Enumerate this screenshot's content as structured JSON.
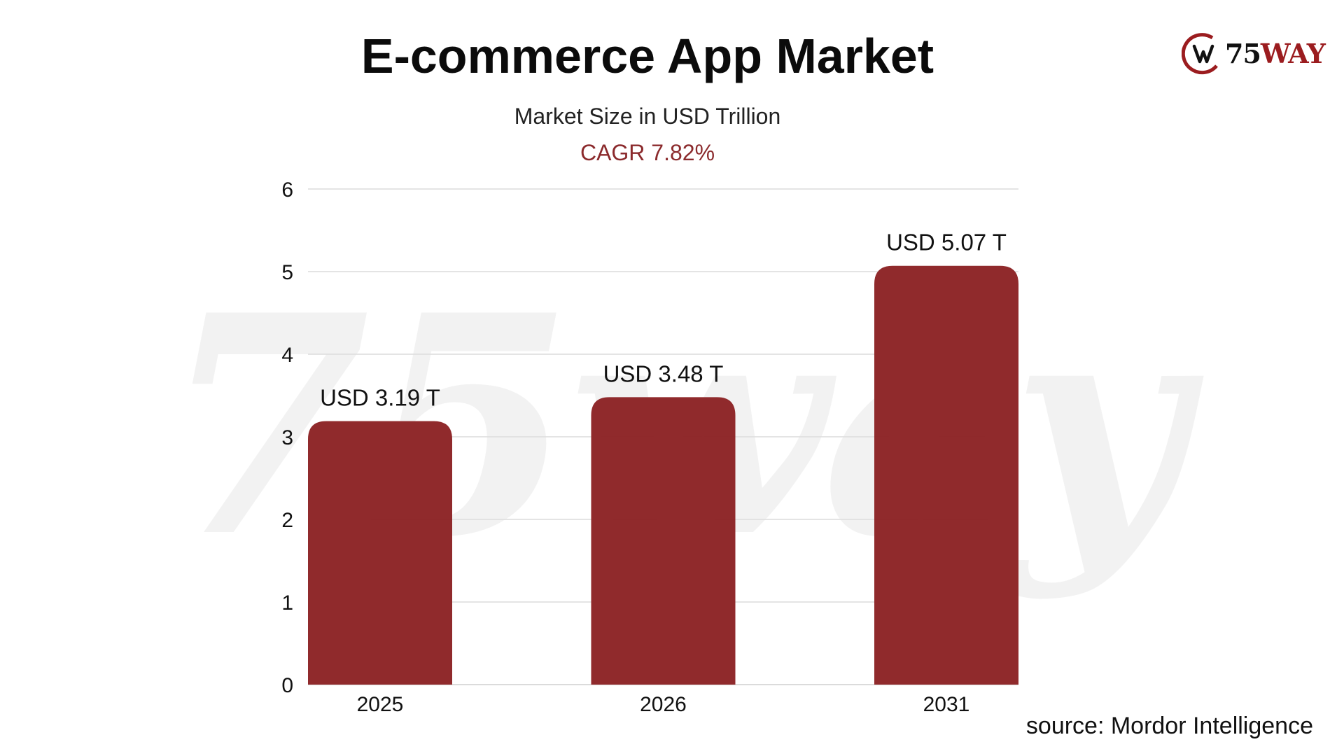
{
  "brand": {
    "logo_text_number": "75",
    "logo_text_word": "WAY",
    "logo_icon": "crescent-w-icon",
    "watermark_text": "75way",
    "accent_color": "#8b2123",
    "logo_red": "#9b1c1f"
  },
  "header": {
    "title": "E-commerce App Market",
    "subtitle": "Market Size in USD Trillion",
    "cagr": "CAGR 7.82%",
    "cagr_color": "#8b2a2c"
  },
  "footer": {
    "source": "source: Mordor Intelligence"
  },
  "chart_data": {
    "type": "bar",
    "title": "E-commerce App Market",
    "subtitle": "Market Size in USD Trillion",
    "categories": [
      "2025",
      "2026",
      "2031"
    ],
    "values": [
      3.19,
      3.48,
      5.07
    ],
    "data_labels": [
      "USD 3.19 T",
      "USD 3.48 T",
      "USD 5.07 T"
    ],
    "xlabel": "",
    "ylabel": "",
    "ylim": [
      0,
      6
    ],
    "yticks": [
      0,
      1,
      2,
      3,
      4,
      5,
      6
    ],
    "grid": true,
    "legend": "none",
    "bar_color": "#8b2123",
    "grid_color": "#dcdcdc"
  }
}
